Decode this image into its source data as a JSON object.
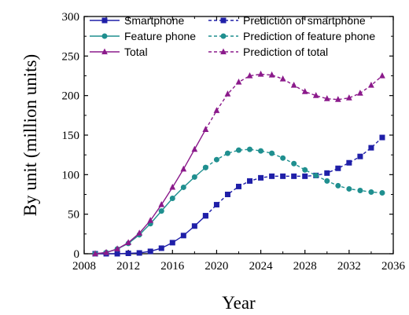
{
  "chart_data": {
    "type": "line",
    "xlabel": "Year",
    "ylabel": "By unit (million units)",
    "xlim": [
      2008,
      2036
    ],
    "ylim": [
      0,
      300
    ],
    "xticks": [
      2008,
      2012,
      2016,
      2020,
      2024,
      2028,
      2032,
      2036
    ],
    "yticks": [
      0,
      50,
      100,
      150,
      200,
      250,
      300
    ],
    "series": [
      {
        "name": "Smartphone",
        "style": "solid",
        "marker": "square",
        "color": "#1f1fa8",
        "x": [
          2009,
          2010,
          2011,
          2012,
          2013,
          2014,
          2015,
          2016,
          2017,
          2018,
          2019
        ],
        "y": [
          0,
          0,
          0,
          0.5,
          1,
          3,
          7,
          14,
          23,
          35,
          48
        ]
      },
      {
        "name": "Feature phone",
        "style": "solid",
        "marker": "circle",
        "color": "#1f8f8f",
        "x": [
          2009,
          2010,
          2011,
          2012,
          2013,
          2014,
          2015,
          2016,
          2017,
          2018,
          2019
        ],
        "y": [
          0,
          1.5,
          6,
          13,
          24,
          38,
          54,
          70,
          84,
          97,
          109
        ]
      },
      {
        "name": "Total",
        "style": "solid",
        "marker": "triangle",
        "color": "#8b1a8b",
        "x": [
          2009,
          2010,
          2011,
          2012,
          2013,
          2014,
          2015,
          2016,
          2017,
          2018,
          2019
        ],
        "y": [
          0,
          1.5,
          6,
          14,
          26,
          42,
          62,
          84,
          107,
          132,
          157
        ]
      },
      {
        "name": "Prediction of smartphone",
        "style": "dashed",
        "marker": "square",
        "color": "#1f1fa8",
        "x": [
          2019,
          2020,
          2021,
          2022,
          2023,
          2024,
          2025,
          2026,
          2027,
          2028,
          2029,
          2030,
          2031,
          2032,
          2033,
          2034,
          2035
        ],
        "y": [
          48,
          62,
          75,
          85,
          92,
          96,
          98,
          98,
          98,
          98,
          99,
          102,
          108,
          115,
          123,
          134,
          147
        ]
      },
      {
        "name": "Prediction of feature phone",
        "style": "dashed",
        "marker": "circle",
        "color": "#1f8f8f",
        "x": [
          2019,
          2020,
          2021,
          2022,
          2023,
          2024,
          2025,
          2026,
          2027,
          2028,
          2029,
          2030,
          2031,
          2032,
          2033,
          2034,
          2035
        ],
        "y": [
          109,
          119,
          127,
          131,
          132,
          130,
          127,
          121,
          114,
          106,
          99,
          92,
          86,
          82,
          80,
          78,
          77
        ]
      },
      {
        "name": "Prediction of total",
        "style": "dashed",
        "marker": "triangle",
        "color": "#8b1a8b",
        "x": [
          2019,
          2020,
          2021,
          2022,
          2023,
          2024,
          2025,
          2026,
          2027,
          2028,
          2029,
          2030,
          2031,
          2032,
          2033,
          2034,
          2035
        ],
        "y": [
          157,
          181,
          202,
          217,
          225,
          227,
          226,
          221,
          213,
          205,
          200,
          196,
          195,
          197,
          203,
          213,
          225
        ]
      }
    ],
    "legend": {
      "placement": "top-inside",
      "columns": 2
    },
    "grid": false
  }
}
